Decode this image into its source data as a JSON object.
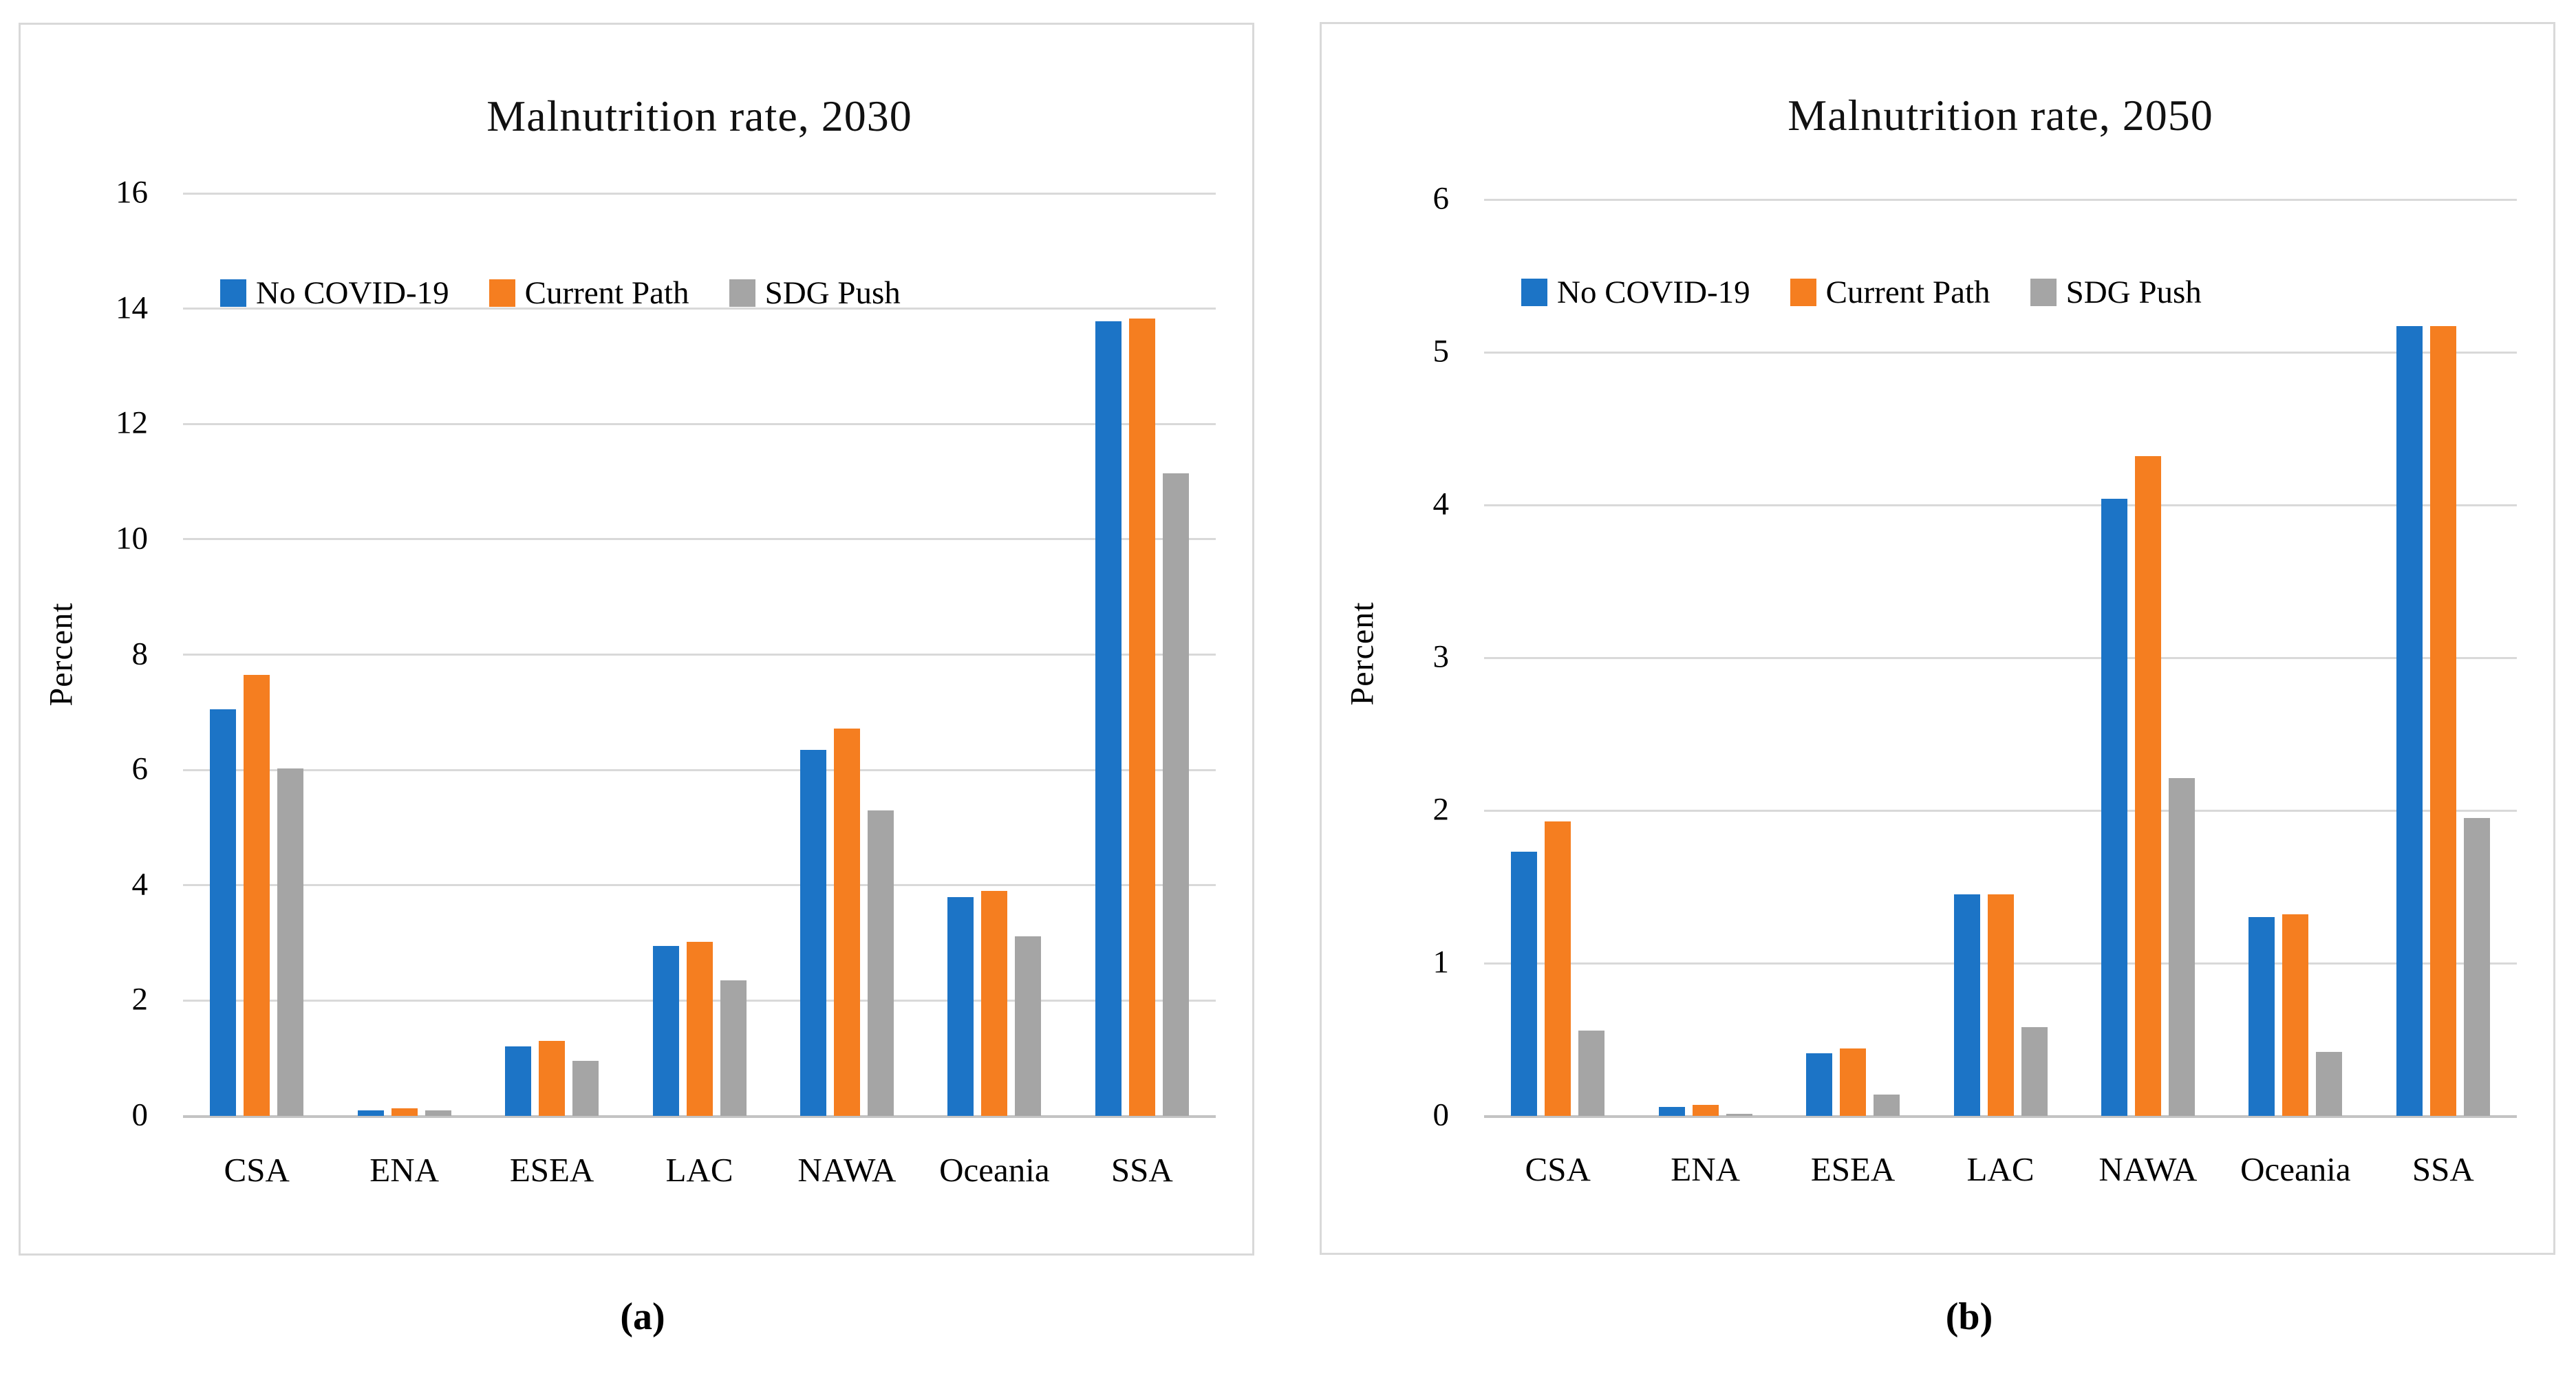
{
  "colors": {
    "blue": "#1c74c6",
    "orange": "#f57e20",
    "gray": "#a5a5a5",
    "gridline": "#d9d9d9",
    "axis_line": "#c3c3c3",
    "panel_border": "#d9d9d9",
    "text": "#000000"
  },
  "captions": [
    "(a)",
    "(b)"
  ],
  "chart_data": [
    {
      "type": "bar",
      "title": "Malnutrition rate, 2030",
      "xlabel": "",
      "ylabel": "Percent",
      "ylim": [
        0,
        16
      ],
      "yticks": [
        0,
        2,
        4,
        6,
        8,
        10,
        12,
        14,
        16
      ],
      "grid": true,
      "legend_position": "top-left-inside",
      "categories": [
        "CSA",
        "ENA",
        "ESEA",
        "LAC",
        "NAWA",
        "Oceania",
        "SSA"
      ],
      "series": [
        {
          "name": "No COVID-19",
          "color": "blue",
          "values": [
            7.05,
            0.1,
            1.2,
            2.95,
            6.35,
            3.8,
            13.78
          ]
        },
        {
          "name": "Current Path",
          "color": "orange",
          "values": [
            7.65,
            0.13,
            1.3,
            3.02,
            6.72,
            3.9,
            13.83
          ]
        },
        {
          "name": "SDG Push",
          "color": "gray",
          "values": [
            6.02,
            0.1,
            0.95,
            2.35,
            5.3,
            3.12,
            11.15
          ]
        }
      ]
    },
    {
      "type": "bar",
      "title": "Malnutrition rate, 2050",
      "xlabel": "",
      "ylabel": "Percent",
      "ylim": [
        0,
        6
      ],
      "yticks": [
        0,
        1,
        2,
        3,
        4,
        5,
        6
      ],
      "grid": true,
      "legend_position": "top-left-inside",
      "categories": [
        "CSA",
        "ENA",
        "ESEA",
        "LAC",
        "NAWA",
        "Oceania",
        "SSA"
      ],
      "series": [
        {
          "name": "No COVID-19",
          "color": "blue",
          "values": [
            1.73,
            0.06,
            0.41,
            1.45,
            4.04,
            1.3,
            5.17
          ]
        },
        {
          "name": "Current Path",
          "color": "orange",
          "values": [
            1.93,
            0.07,
            0.44,
            1.45,
            4.32,
            1.32,
            5.17
          ]
        },
        {
          "name": "SDG Push",
          "color": "gray",
          "values": [
            0.56,
            0.015,
            0.14,
            0.58,
            2.21,
            0.42,
            1.95
          ]
        }
      ]
    }
  ]
}
